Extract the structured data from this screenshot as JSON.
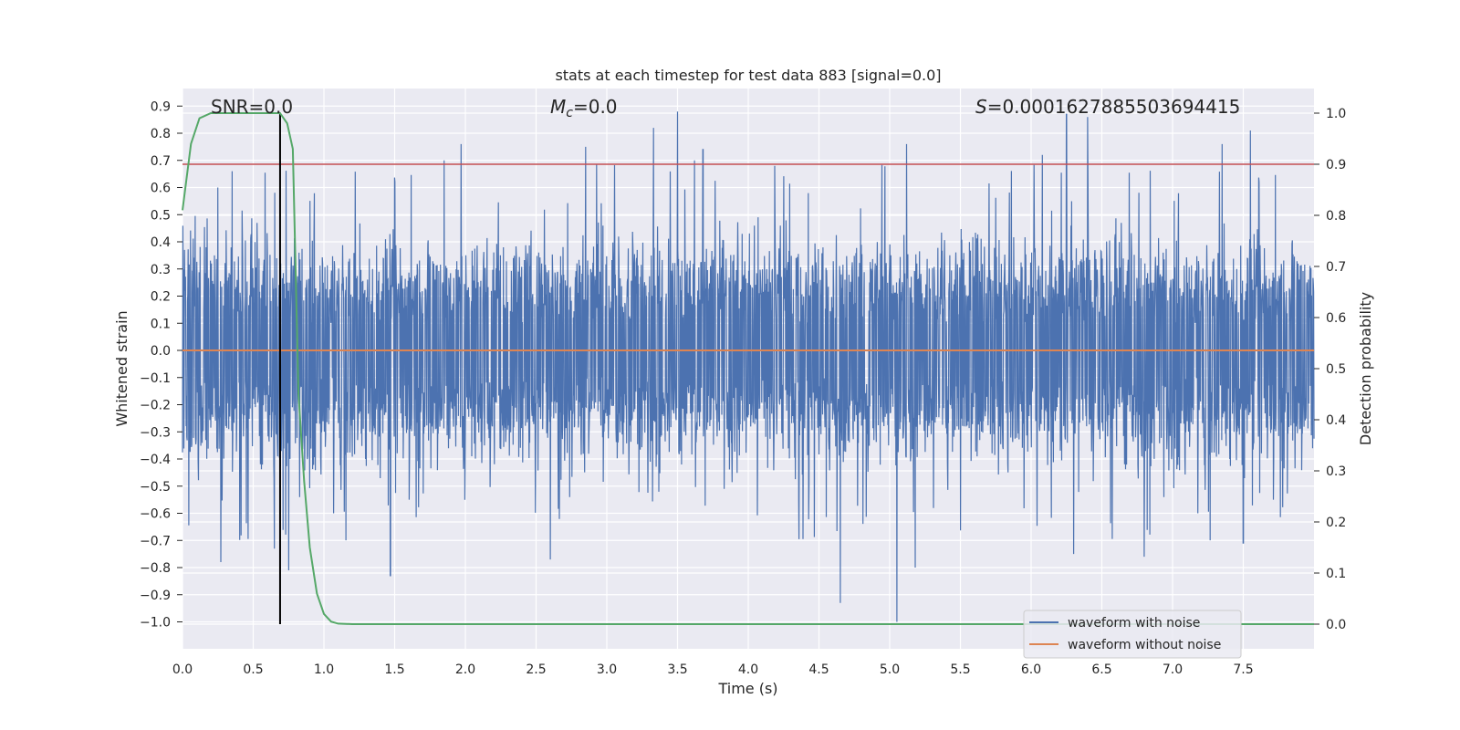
{
  "chart_data": {
    "type": "line",
    "title": "stats at each timestep for test data 883 [signal=0.0]",
    "xlabel": "Time (s)",
    "ylabel": "Whitened strain",
    "y2label": "Detection probability",
    "xlim": [
      0,
      8.0
    ],
    "ylim": [
      -1.09,
      1.0
    ],
    "y2lim": [
      -0.05,
      1.03
    ],
    "x_ticks": [
      "0.0",
      "0.5",
      "1.0",
      "1.5",
      "2.0",
      "2.5",
      "3.0",
      "3.5",
      "4.0",
      "4.5",
      "5.0",
      "5.5",
      "6.0",
      "6.5",
      "7.0",
      "7.5"
    ],
    "y_ticks": [
      "0.9",
      "0.8",
      "0.7",
      "0.6",
      "0.5",
      "0.4",
      "0.3",
      "0.2",
      "0.1",
      "0.0",
      "-0.1",
      "-0.2",
      "-0.3",
      "-0.4",
      "-0.5",
      "-0.6",
      "-0.7",
      "-0.8",
      "-0.9",
      "-1.0"
    ],
    "y2_ticks": [
      "1.0",
      "0.9",
      "0.8",
      "0.7",
      "0.6",
      "0.5",
      "0.4",
      "0.3",
      "0.2",
      "0.1",
      "0.0"
    ],
    "grid": true,
    "legend_position": "lower right",
    "legend": [
      "waveform with noise",
      "waveform without noise"
    ],
    "annotations": {
      "snr": "SNR=0.0",
      "mc_symbol": "M",
      "mc_sub": "c",
      "mc_value": "=0.0",
      "s_symbol": "S",
      "s_value": "=0.0001627885503694415"
    },
    "threshold_probability": 0.9,
    "vertical_marker_time": 0.69,
    "series": [
      {
        "name": "waveform with noise",
        "color": "#4c72b0",
        "description_of_data": "noise-only whitened strain, approx. symmetric around 0, typical envelope +/-0.5",
        "peaks": [
          {
            "x": 0.25,
            "y": 0.6
          },
          {
            "x": 0.35,
            "y": 0.66
          },
          {
            "x": 0.75,
            "y": 0.55
          },
          {
            "x": 1.85,
            "y": 0.7
          },
          {
            "x": 1.97,
            "y": 0.76
          },
          {
            "x": 2.85,
            "y": 0.75
          },
          {
            "x": 3.33,
            "y": 0.82
          },
          {
            "x": 3.5,
            "y": 0.88
          },
          {
            "x": 3.62,
            "y": 0.7
          },
          {
            "x": 3.68,
            "y": 0.74
          },
          {
            "x": 5.12,
            "y": 0.76
          },
          {
            "x": 6.08,
            "y": 0.72
          },
          {
            "x": 6.25,
            "y": 0.87
          },
          {
            "x": 6.4,
            "y": 0.86
          },
          {
            "x": 7.35,
            "y": 0.76
          },
          {
            "x": 7.55,
            "y": 0.81
          }
        ],
        "troughs": [
          {
            "x": 0.27,
            "y": -0.78
          },
          {
            "x": 0.65,
            "y": -0.73
          },
          {
            "x": 0.75,
            "y": -0.81
          },
          {
            "x": 1.47,
            "y": -0.83
          },
          {
            "x": 2.6,
            "y": -0.77
          },
          {
            "x": 4.65,
            "y": -0.93
          },
          {
            "x": 5.05,
            "y": -1.0
          },
          {
            "x": 5.18,
            "y": -0.8
          },
          {
            "x": 6.3,
            "y": -0.75
          },
          {
            "x": 6.8,
            "y": -0.76
          },
          {
            "x": 7.5,
            "y": -0.71
          }
        ]
      },
      {
        "name": "waveform without noise",
        "color": "#dd8452",
        "x": [
          0,
          8.0
        ],
        "y": [
          0.0,
          0.0
        ]
      },
      {
        "name": "detection probability",
        "color": "#55a868",
        "axis": "right",
        "x": [
          0.0,
          0.06,
          0.12,
          0.2,
          0.3,
          0.4,
          0.5,
          0.6,
          0.69,
          0.74,
          0.78,
          0.82,
          0.86,
          0.9,
          0.95,
          1.0,
          1.05,
          1.1,
          1.2,
          2.0,
          4.0,
          6.0,
          8.0
        ],
        "y": [
          0.81,
          0.94,
          0.99,
          1.0,
          1.0,
          1.0,
          1.0,
          1.0,
          1.0,
          0.98,
          0.93,
          0.45,
          0.28,
          0.15,
          0.06,
          0.02,
          0.005,
          0.001,
          0.0,
          0.0,
          0.0,
          0.0,
          0.0
        ]
      }
    ]
  }
}
